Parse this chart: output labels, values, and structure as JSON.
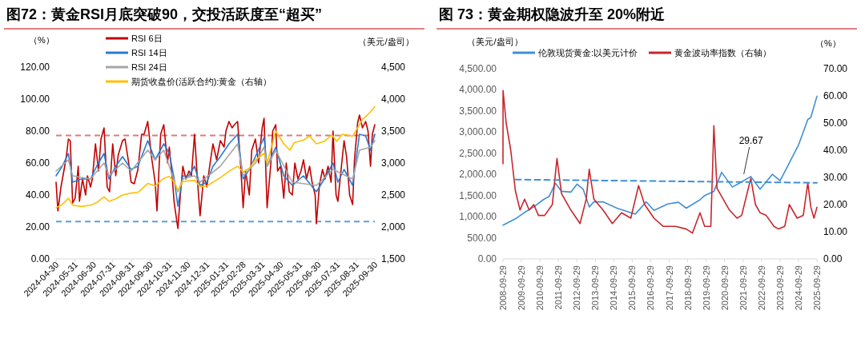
{
  "chart_data": [
    {
      "type": "line",
      "title": "图72：黄金RSI月底突破90，交投活跃度至“超买”",
      "ylabel": "（%）",
      "y2label": "（美元/盎司）",
      "legend": "top left",
      "xlim": [
        "2024-04-30",
        "2025-09-30"
      ],
      "xticks": [
        "2024-04-30",
        "2024-05-31",
        "2024-06-30",
        "2024-07-31",
        "2024-08-31",
        "2024-09-30",
        "2024-10-31",
        "2024-11-30",
        "2024-12-31",
        "2025-01-31",
        "2025-02-28",
        "2025-03-31",
        "2025-04-30",
        "2025-05-31",
        "2025-06-30",
        "2025-07-31",
        "2025-08-31",
        "2025-09-30"
      ],
      "ylim": [
        0,
        120
      ],
      "yticks": [
        {
          "value": 0,
          "label": "0.00"
        },
        {
          "value": 20,
          "label": "20.00"
        },
        {
          "value": 40,
          "label": "40.00"
        },
        {
          "value": 60,
          "label": "60.00"
        },
        {
          "value": 80,
          "label": "80.00"
        },
        {
          "value": 100,
          "label": "100.00"
        },
        {
          "value": 120,
          "label": "120.00"
        }
      ],
      "y2lim": [
        1500,
        4500
      ],
      "y2ticks": [
        {
          "value": 1500,
          "label": "1,500"
        },
        {
          "value": 2000,
          "label": "2,000"
        },
        {
          "value": 2500,
          "label": "2,500"
        },
        {
          "value": 3000,
          "label": "3,000"
        },
        {
          "value": 3500,
          "label": "3,500"
        },
        {
          "value": 4000,
          "label": "4,000"
        },
        {
          "value": 4500,
          "label": "4,500"
        }
      ],
      "ref_lines": [
        {
          "axis": "y",
          "value": 77.2,
          "color": "#e07a7a",
          "line_style": "dashed"
        },
        {
          "axis": "y",
          "value": 23.4,
          "color": "#5aa0dc",
          "line_style": "dashed"
        }
      ],
      "series": [
        {
          "name": "RSI 6日",
          "color": "#c00000",
          "x": [
            "2024-04-30",
            "2024-05-03",
            "2024-05-08",
            "2024-05-14",
            "2024-05-17",
            "2024-05-20",
            "2024-05-23",
            "2024-05-27",
            "2024-05-31",
            "2024-06-05",
            "2024-06-07",
            "2024-06-12",
            "2024-06-17",
            "2024-06-20",
            "2024-06-25",
            "2024-06-28",
            "2024-07-03",
            "2024-07-08",
            "2024-07-12",
            "2024-07-17",
            "2024-07-22",
            "2024-07-26",
            "2024-07-31",
            "2024-08-05",
            "2024-08-09",
            "2024-08-16",
            "2024-08-20",
            "2024-08-26",
            "2024-08-30",
            "2024-09-04",
            "2024-09-10",
            "2024-09-16",
            "2024-09-20",
            "2024-09-26",
            "2024-10-02",
            "2024-10-08",
            "2024-10-11",
            "2024-10-17",
            "2024-10-22",
            "2024-10-28",
            "2024-10-31",
            "2024-11-05",
            "2024-11-08",
            "2024-11-14",
            "2024-11-18",
            "2024-11-22",
            "2024-11-27",
            "2024-12-02",
            "2024-12-06",
            "2024-12-11",
            "2024-12-16",
            "2024-12-20",
            "2024-12-26",
            "2024-12-31",
            "2025-01-06",
            "2025-01-10",
            "2025-01-16",
            "2025-01-22",
            "2025-01-28",
            "2025-01-31",
            "2025-02-05",
            "2025-02-10",
            "2025-02-14",
            "2025-02-19",
            "2025-02-24",
            "2025-02-28",
            "2025-03-04",
            "2025-03-10",
            "2025-03-14",
            "2025-03-20",
            "2025-03-25",
            "2025-03-31",
            "2025-04-03",
            "2025-04-08",
            "2025-04-14",
            "2025-04-17",
            "2025-04-22",
            "2025-04-25",
            "2025-04-30",
            "2025-05-05",
            "2025-05-09",
            "2025-05-14",
            "2025-05-19",
            "2025-05-23",
            "2025-05-28",
            "2025-06-02",
            "2025-06-06",
            "2025-06-11",
            "2025-06-16",
            "2025-06-20",
            "2025-06-25",
            "2025-06-27",
            "2025-07-02",
            "2025-07-07",
            "2025-07-11",
            "2025-07-16",
            "2025-07-21",
            "2025-07-24",
            "2025-07-29",
            "2025-08-01",
            "2025-08-06",
            "2025-08-11",
            "2025-08-15",
            "2025-08-20",
            "2025-08-25",
            "2025-08-28",
            "2025-09-02",
            "2025-09-05",
            "2025-09-10",
            "2025-09-15",
            "2025-09-19",
            "2025-09-23",
            "2025-09-26",
            "2025-09-30"
          ],
          "values": [
            48,
            30,
            45,
            58,
            65,
            75,
            74,
            35,
            38,
            58,
            36,
            50,
            40,
            52,
            45,
            50,
            72,
            55,
            75,
            82,
            45,
            42,
            72,
            52,
            65,
            74,
            75,
            60,
            48,
            47,
            56,
            78,
            78,
            86,
            64,
            48,
            30,
            78,
            84,
            60,
            70,
            50,
            35,
            19,
            40,
            58,
            50,
            55,
            52,
            78,
            48,
            27,
            52,
            45,
            62,
            72,
            62,
            74,
            70,
            80,
            86,
            82,
            84,
            86,
            58,
            32,
            55,
            40,
            68,
            75,
            60,
            82,
            88,
            32,
            60,
            80,
            84,
            55,
            58,
            38,
            60,
            42,
            40,
            60,
            50,
            55,
            62,
            50,
            58,
            48,
            40,
            22,
            46,
            56,
            50,
            58,
            48,
            80,
            40,
            36,
            55,
            74,
            64,
            40,
            34,
            62,
            85,
            90,
            82,
            86,
            80,
            58,
            78,
            84
          ]
        },
        {
          "name": "RSI 14日",
          "color": "#2a7bd0",
          "x": [
            "2024-04-30",
            "2024-05-10",
            "2024-05-20",
            "2024-05-27",
            "2024-06-10",
            "2024-06-25",
            "2024-07-05",
            "2024-07-17",
            "2024-07-25",
            "2024-08-05",
            "2024-08-16",
            "2024-08-30",
            "2024-09-10",
            "2024-09-26",
            "2024-10-08",
            "2024-10-22",
            "2024-10-31",
            "2024-11-08",
            "2024-11-14",
            "2024-11-22",
            "2024-12-02",
            "2024-12-11",
            "2024-12-20",
            "2024-12-31",
            "2025-01-10",
            "2025-01-22",
            "2025-02-05",
            "2025-02-19",
            "2025-02-28",
            "2025-03-10",
            "2025-03-20",
            "2025-04-03",
            "2025-04-08",
            "2025-04-22",
            "2025-05-05",
            "2025-05-19",
            "2025-06-06",
            "2025-06-27",
            "2025-07-10",
            "2025-07-24",
            "2025-08-01",
            "2025-08-11",
            "2025-08-25",
            "2025-09-05",
            "2025-09-15",
            "2025-09-23",
            "2025-09-30"
          ],
          "values": [
            52,
            58,
            66,
            48,
            50,
            50,
            58,
            66,
            50,
            58,
            64,
            56,
            58,
            74,
            62,
            72,
            66,
            50,
            33,
            52,
            52,
            58,
            46,
            48,
            58,
            64,
            72,
            78,
            50,
            56,
            64,
            76,
            58,
            70,
            52,
            46,
            52,
            42,
            50,
            60,
            48,
            56,
            46,
            78,
            77,
            68,
            78
          ]
        },
        {
          "name": "RSI 24日",
          "color": "#a6a6a6",
          "x": [
            "2024-04-30",
            "2024-05-20",
            "2024-05-27",
            "2024-06-25",
            "2024-07-17",
            "2024-07-25",
            "2024-08-16",
            "2024-08-30",
            "2024-09-26",
            "2024-10-08",
            "2024-10-22",
            "2024-11-14",
            "2024-11-22",
            "2024-12-11",
            "2024-12-20",
            "2025-01-22",
            "2025-02-19",
            "2025-02-28",
            "2025-03-20",
            "2025-04-03",
            "2025-04-08",
            "2025-04-22",
            "2025-05-19",
            "2025-06-27",
            "2025-07-24",
            "2025-08-25",
            "2025-09-05",
            "2025-09-23",
            "2025-09-30"
          ],
          "values": [
            55,
            62,
            52,
            50,
            60,
            52,
            60,
            55,
            68,
            62,
            68,
            42,
            50,
            52,
            48,
            58,
            72,
            52,
            60,
            70,
            58,
            68,
            48,
            46,
            56,
            50,
            68,
            70,
            74
          ]
        },
        {
          "name": "期货收盘价(活跃合约):黄金（右轴）",
          "color": "#ffc000",
          "axis": "y2",
          "x": [
            "2024-04-30",
            "2024-05-10",
            "2024-05-20",
            "2024-05-27",
            "2024-06-10",
            "2024-06-25",
            "2024-07-05",
            "2024-07-17",
            "2024-07-25",
            "2024-08-05",
            "2024-08-16",
            "2024-08-30",
            "2024-09-10",
            "2024-09-26",
            "2024-10-08",
            "2024-10-22",
            "2024-10-31",
            "2024-11-08",
            "2024-11-14",
            "2024-11-22",
            "2024-12-11",
            "2024-12-20",
            "2024-12-31",
            "2025-01-22",
            "2025-02-05",
            "2025-02-19",
            "2025-02-28",
            "2025-03-10",
            "2025-03-20",
            "2025-04-03",
            "2025-04-08",
            "2025-04-22",
            "2025-05-05",
            "2025-05-15",
            "2025-05-22",
            "2025-06-06",
            "2025-06-16",
            "2025-06-27",
            "2025-07-10",
            "2025-07-22",
            "2025-07-30",
            "2025-08-08",
            "2025-08-25",
            "2025-09-02",
            "2025-09-10",
            "2025-09-23",
            "2025-09-30"
          ],
          "values": [
            2300,
            2350,
            2450,
            2340,
            2320,
            2340,
            2380,
            2470,
            2400,
            2440,
            2500,
            2530,
            2540,
            2680,
            2640,
            2760,
            2790,
            2700,
            2570,
            2710,
            2730,
            2630,
            2640,
            2770,
            2870,
            2950,
            2860,
            2920,
            3050,
            3150,
            3000,
            3500,
            3300,
            3200,
            3320,
            3360,
            3420,
            3300,
            3340,
            3440,
            3340,
            3450,
            3420,
            3550,
            3680,
            3800,
            3880
          ]
        }
      ]
    },
    {
      "type": "line",
      "title": "图 73：黄金期权隐波升至 20%附近",
      "ylabel": "（美元/盎司）",
      "y2label": "（%）",
      "legend": "top",
      "xlim": [
        "2008-09-29",
        "2025-09-29"
      ],
      "xticks": [
        "2008-09-29",
        "2009-09-29",
        "2010-09-29",
        "2011-09-29",
        "2012-09-29",
        "2013-09-29",
        "2014-09-29",
        "2015-09-29",
        "2016-09-29",
        "2017-09-29",
        "2018-09-29",
        "2019-09-29",
        "2020-09-29",
        "2021-09-29",
        "2022-09-29",
        "2023-09-29",
        "2024-09-29",
        "2025-09-29"
      ],
      "ylim": [
        0,
        4500
      ],
      "yticks": [
        {
          "value": 0,
          "label": "0.00"
        },
        {
          "value": 500,
          "label": "500.00"
        },
        {
          "value": 1000,
          "label": "1,000.00"
        },
        {
          "value": 1500,
          "label": "1,500.00"
        },
        {
          "value": 2000,
          "label": "2,000.00"
        },
        {
          "value": 2500,
          "label": "2,500.00"
        },
        {
          "value": 3000,
          "label": "3,000.00"
        },
        {
          "value": 3500,
          "label": "3,500.00"
        },
        {
          "value": 4000,
          "label": "4,000.00"
        },
        {
          "value": 4500,
          "label": "4,500.00"
        }
      ],
      "y2lim": [
        0,
        70
      ],
      "y2ticks": [
        {
          "value": 0,
          "label": "0.00"
        },
        {
          "value": 10,
          "label": "10.00"
        },
        {
          "value": 20,
          "label": "20.00"
        },
        {
          "value": 30,
          "label": "30.00"
        },
        {
          "value": 40,
          "label": "40.00"
        },
        {
          "value": 50,
          "label": "50.00"
        },
        {
          "value": 60,
          "label": "60.00"
        },
        {
          "value": 70,
          "label": "70.00"
        }
      ],
      "annotations": [
        "29.67"
      ],
      "series": [
        {
          "name": "伦敦现货黄金:以美元计价",
          "color": "#3f8fd6",
          "x": [
            "2008-10",
            "2009-06",
            "2009-12",
            "2010-06",
            "2010-12",
            "2011-04",
            "2011-08",
            "2011-12",
            "2012-06",
            "2012-10",
            "2013-02",
            "2013-06",
            "2013-09",
            "2014-03",
            "2014-12",
            "2015-12",
            "2016-07",
            "2016-12",
            "2017-09",
            "2018-04",
            "2018-09",
            "2019-06",
            "2019-09",
            "2020-03",
            "2020-08",
            "2021-03",
            "2021-08",
            "2022-03",
            "2022-09",
            "2023-05",
            "2023-10",
            "2024-03",
            "2024-10",
            "2025-04",
            "2025-06",
            "2025-09-29"
          ],
          "values": [
            800,
            950,
            1100,
            1230,
            1400,
            1480,
            1790,
            1600,
            1580,
            1770,
            1650,
            1230,
            1350,
            1350,
            1200,
            1060,
            1350,
            1150,
            1300,
            1340,
            1200,
            1400,
            1500,
            1600,
            2050,
            1700,
            1800,
            1950,
            1650,
            2000,
            1850,
            2200,
            2700,
            3300,
            3350,
            3850
          ]
        },
        {
          "name": "黄金波动率指数（右轴）",
          "color": "#c8262c",
          "axis": "y2",
          "x": [
            "2008-09-29",
            "2008-10",
            "2008-12",
            "2009-03",
            "2009-06",
            "2009-09",
            "2009-12",
            "2010-03",
            "2010-06",
            "2010-09",
            "2011-01",
            "2011-06",
            "2011-09",
            "2011-12",
            "2012-06",
            "2012-12",
            "2013-04",
            "2013-06",
            "2013-09",
            "2014-03",
            "2014-09",
            "2015-03",
            "2015-09",
            "2016-02",
            "2016-06",
            "2016-12",
            "2017-06",
            "2018-02",
            "2018-09",
            "2019-01",
            "2019-06",
            "2019-09",
            "2020-01",
            "2020-03",
            "2020-05",
            "2020-09",
            "2021-01",
            "2021-06",
            "2021-09",
            "2022-03",
            "2022-06",
            "2022-09",
            "2023-01",
            "2023-06",
            "2023-09",
            "2024-01",
            "2024-04",
            "2024-09",
            "2025-01",
            "2025-04",
            "2025-06",
            "2025-08",
            "2025-09-29"
          ],
          "values": [
            35,
            62,
            50,
            40,
            25,
            18,
            22,
            18,
            20,
            16,
            16,
            20,
            37,
            24,
            18,
            13,
            22,
            33,
            22,
            18,
            13,
            17,
            15,
            27,
            20,
            15,
            12,
            12,
            11,
            9.5,
            17,
            12,
            12,
            49,
            26,
            22,
            18,
            15,
            16,
            29.67,
            20,
            17,
            16,
            12,
            11,
            12,
            20,
            15,
            16,
            28,
            19,
            15,
            19
          ]
        },
        {
          "color": "#3f8fd6",
          "axis": "y2",
          "line_style": "dashed",
          "x": [
            "2009-06",
            "2025-09-29"
          ],
          "values": [
            29.2,
            28.0
          ]
        }
      ]
    }
  ]
}
